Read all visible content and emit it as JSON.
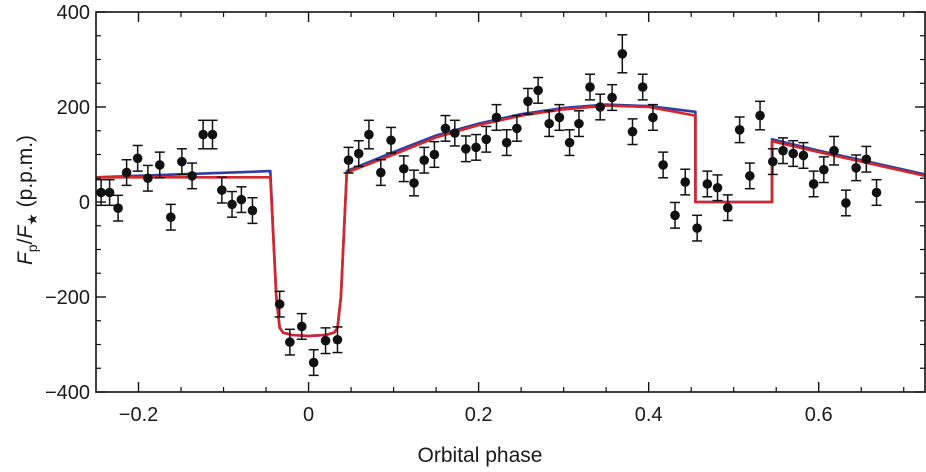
{
  "chart_data": {
    "type": "scatter",
    "xlabel": "Orbital phase",
    "ylabel": {
      "var1": "F",
      "sub1": "p",
      "slash": "/",
      "var2": "F",
      "sub2": "★",
      "unit": " (p.p.m.)"
    },
    "xlim": [
      -0.25,
      0.725
    ],
    "ylim": [
      -400,
      400
    ],
    "x_ticks": [
      -0.2,
      0,
      0.2,
      0.4,
      0.6
    ],
    "x_tick_labels": [
      "−0.2",
      "0",
      "0.2",
      "0.4",
      "0.6"
    ],
    "y_ticks": [
      -400,
      -200,
      0,
      200,
      400
    ],
    "y_tick_labels": [
      "−400",
      "−200",
      "0",
      "200",
      "400"
    ],
    "grid": false,
    "colors": {
      "points": "#111111",
      "model_blue": "#2b3fa8",
      "model_red": "#d7262b"
    },
    "points": [
      {
        "x": -0.244,
        "y": 20,
        "err": 27
      },
      {
        "x": -0.234,
        "y": 20,
        "err": 27
      },
      {
        "x": -0.224,
        "y": -13,
        "err": 27
      },
      {
        "x": -0.214,
        "y": 62,
        "err": 27
      },
      {
        "x": -0.201,
        "y": 92,
        "err": 27
      },
      {
        "x": -0.189,
        "y": 50,
        "err": 27
      },
      {
        "x": -0.175,
        "y": 78,
        "err": 27
      },
      {
        "x": -0.162,
        "y": -32,
        "err": 27
      },
      {
        "x": -0.149,
        "y": 85,
        "err": 27
      },
      {
        "x": -0.137,
        "y": 55,
        "err": 27
      },
      {
        "x": -0.124,
        "y": 142,
        "err": 30
      },
      {
        "x": -0.113,
        "y": 142,
        "err": 30
      },
      {
        "x": -0.102,
        "y": 25,
        "err": 27
      },
      {
        "x": -0.09,
        "y": -5,
        "err": 27
      },
      {
        "x": -0.079,
        "y": 5,
        "err": 27
      },
      {
        "x": -0.066,
        "y": -18,
        "err": 27
      },
      {
        "x": -0.034,
        "y": -215,
        "err": 27
      },
      {
        "x": -0.022,
        "y": -295,
        "err": 27
      },
      {
        "x": -0.008,
        "y": -262,
        "err": 27
      },
      {
        "x": 0.006,
        "y": -338,
        "err": 27
      },
      {
        "x": 0.02,
        "y": -292,
        "err": 27
      },
      {
        "x": 0.034,
        "y": -290,
        "err": 27
      },
      {
        "x": 0.047,
        "y": 88,
        "err": 27
      },
      {
        "x": 0.059,
        "y": 102,
        "err": 27
      },
      {
        "x": 0.071,
        "y": 142,
        "err": 30
      },
      {
        "x": 0.085,
        "y": 62,
        "err": 27
      },
      {
        "x": 0.097,
        "y": 130,
        "err": 27
      },
      {
        "x": 0.112,
        "y": 70,
        "err": 27
      },
      {
        "x": 0.124,
        "y": 40,
        "err": 27
      },
      {
        "x": 0.136,
        "y": 88,
        "err": 27
      },
      {
        "x": 0.148,
        "y": 100,
        "err": 27
      },
      {
        "x": 0.161,
        "y": 155,
        "err": 27
      },
      {
        "x": 0.172,
        "y": 145,
        "err": 27
      },
      {
        "x": 0.185,
        "y": 112,
        "err": 27
      },
      {
        "x": 0.197,
        "y": 115,
        "err": 27
      },
      {
        "x": 0.209,
        "y": 132,
        "err": 27
      },
      {
        "x": 0.221,
        "y": 178,
        "err": 27
      },
      {
        "x": 0.233,
        "y": 125,
        "err": 27
      },
      {
        "x": 0.245,
        "y": 155,
        "err": 27
      },
      {
        "x": 0.258,
        "y": 212,
        "err": 27
      },
      {
        "x": 0.27,
        "y": 235,
        "err": 27
      },
      {
        "x": 0.283,
        "y": 165,
        "err": 27
      },
      {
        "x": 0.295,
        "y": 178,
        "err": 27
      },
      {
        "x": 0.307,
        "y": 125,
        "err": 27
      },
      {
        "x": 0.318,
        "y": 165,
        "err": 27
      },
      {
        "x": 0.331,
        "y": 242,
        "err": 27
      },
      {
        "x": 0.343,
        "y": 200,
        "err": 27
      },
      {
        "x": 0.357,
        "y": 220,
        "err": 27
      },
      {
        "x": 0.369,
        "y": 312,
        "err": 40
      },
      {
        "x": 0.381,
        "y": 148,
        "err": 27
      },
      {
        "x": 0.393,
        "y": 242,
        "err": 27
      },
      {
        "x": 0.405,
        "y": 178,
        "err": 27
      },
      {
        "x": 0.417,
        "y": 78,
        "err": 27
      },
      {
        "x": 0.431,
        "y": -28,
        "err": 27
      },
      {
        "x": 0.443,
        "y": 42,
        "err": 27
      },
      {
        "x": 0.457,
        "y": -55,
        "err": 27
      },
      {
        "x": 0.469,
        "y": 38,
        "err": 27
      },
      {
        "x": 0.481,
        "y": 30,
        "err": 27
      },
      {
        "x": 0.493,
        "y": -12,
        "err": 27
      },
      {
        "x": 0.507,
        "y": 152,
        "err": 27
      },
      {
        "x": 0.519,
        "y": 55,
        "err": 27
      },
      {
        "x": 0.531,
        "y": 182,
        "err": 30
      },
      {
        "x": 0.546,
        "y": 85,
        "err": 27
      },
      {
        "x": 0.558,
        "y": 108,
        "err": 27
      },
      {
        "x": 0.57,
        "y": 102,
        "err": 27
      },
      {
        "x": 0.582,
        "y": 98,
        "err": 27
      },
      {
        "x": 0.594,
        "y": 38,
        "err": 27
      },
      {
        "x": 0.606,
        "y": 68,
        "err": 27
      },
      {
        "x": 0.618,
        "y": 108,
        "err": 30
      },
      {
        "x": 0.632,
        "y": -2,
        "err": 27
      },
      {
        "x": 0.644,
        "y": 72,
        "err": 27
      },
      {
        "x": 0.656,
        "y": 90,
        "err": 27
      },
      {
        "x": 0.668,
        "y": 20,
        "err": 27
      }
    ],
    "series": [
      {
        "color": "#2b3fa8",
        "x": [
          -0.25,
          -0.045,
          -0.045,
          -0.038,
          -0.034,
          -0.03,
          -0.02,
          0.0,
          0.02,
          0.03,
          0.034,
          0.038,
          0.045,
          0.045,
          0.1,
          0.15,
          0.2,
          0.25,
          0.3,
          0.35,
          0.4,
          0.455,
          0.455,
          0.545,
          0.545,
          0.6,
          0.65,
          0.725
        ],
        "y": [
          52,
          65,
          65,
          -200,
          -265,
          -275,
          -280,
          -282,
          -280,
          -275,
          -265,
          -200,
          65,
          65,
          105,
          140,
          165,
          185,
          198,
          205,
          202,
          190,
          0,
          0,
          132,
          108,
          88,
          58
        ]
      },
      {
        "color": "#d7262b",
        "x": [
          -0.25,
          -0.045,
          -0.045,
          -0.038,
          -0.034,
          -0.03,
          -0.02,
          0.0,
          0.02,
          0.03,
          0.034,
          0.038,
          0.045,
          0.045,
          0.1,
          0.15,
          0.2,
          0.25,
          0.3,
          0.35,
          0.4,
          0.455,
          0.455,
          0.545,
          0.545,
          0.6,
          0.65,
          0.725
        ],
        "y": [
          52,
          52,
          52,
          -200,
          -265,
          -275,
          -280,
          -282,
          -280,
          -275,
          -265,
          -200,
          62,
          62,
          100,
          136,
          162,
          182,
          195,
          203,
          200,
          182,
          0,
          0,
          128,
          105,
          85,
          55
        ]
      }
    ]
  }
}
